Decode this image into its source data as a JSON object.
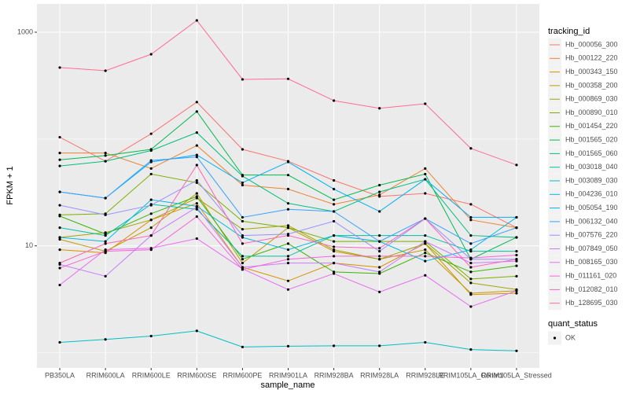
{
  "chart_data": {
    "type": "line",
    "x_label": "sample_name",
    "y_label": "FPKM + 1",
    "categories": [
      "PB350LA",
      "RRIM600LA",
      "RRIM600LE",
      "RRIM600SE",
      "RRIM600PE",
      "RRIM901LA",
      "RRIM928BA",
      "RRIM928LA",
      "RRIM928LE",
      "RRIM105LA_Control",
      "RRIM105LA_Stressed"
    ],
    "log_y": true,
    "ylim": [
      0.72,
      1840
    ],
    "yticks": [
      10,
      1000
    ],
    "minor_yticks": [
      1,
      100
    ],
    "grid": true,
    "legend_title": "tracking_id",
    "point_legend": {
      "title": "quant_status",
      "labels": [
        "OK"
      ]
    },
    "series": [
      {
        "name": "Hb_000056_300",
        "color": "#F8766D",
        "values": [
          104,
          62,
          112,
          222,
          80,
          62,
          41,
          29,
          31,
          24.5,
          14.8
        ]
      },
      {
        "name": "Hb_000122_220",
        "color": "#EA8331",
        "values": [
          74,
          74,
          53,
          87,
          37,
          34,
          24.5,
          30,
          53,
          17.5,
          14.8
        ]
      },
      {
        "name": "Hb_000343_150",
        "color": "#D89000",
        "values": [
          9.2,
          8.6,
          17.5,
          25,
          6.3,
          4.7,
          6.9,
          6.3,
          10.5,
          3.5,
          3.6
        ]
      },
      {
        "name": "Hb_000358_200",
        "color": "#C09B00",
        "values": [
          11.5,
          8.9,
          14.8,
          31,
          6.9,
          14.8,
          8.9,
          7.5,
          9.2,
          3.6,
          3.8
        ]
      },
      {
        "name": "Hb_000869_030",
        "color": "#A3A500",
        "values": [
          12,
          13.3,
          17.5,
          28,
          14.3,
          15.5,
          9.2,
          7.5,
          10.5,
          4.5,
          3.9
        ]
      },
      {
        "name": "Hb_000890_010",
        "color": "#7CAE00",
        "values": [
          19.5,
          20,
          47,
          39,
          17,
          14.8,
          11,
          11,
          11,
          4.9,
          5.2
        ]
      },
      {
        "name": "Hb_001454_220",
        "color": "#39B600",
        "values": [
          19,
          12.9,
          20,
          29,
          7.5,
          10.5,
          5.7,
          5.5,
          8.6,
          5.7,
          6.5
        ]
      },
      {
        "name": "Hb_001565_020",
        "color": "#00BB4E",
        "values": [
          64,
          70,
          80,
          181,
          46,
          46,
          27,
          37,
          47,
          7.5,
          12
        ]
      },
      {
        "name": "Hb_001565_060",
        "color": "#00BF7D",
        "values": [
          56,
          62,
          78,
          115,
          45,
          25,
          21,
          32,
          42,
          12.5,
          12
        ]
      },
      {
        "name": "Hb_003018_040",
        "color": "#00C1A3",
        "values": [
          14.8,
          12.5,
          24.5,
          22,
          8,
          8,
          12.5,
          12.5,
          12.5,
          8.9,
          8.9
        ]
      },
      {
        "name": "Hb_003089_030",
        "color": "#00BFC4",
        "values": [
          1.25,
          1.33,
          1.43,
          1.6,
          1.13,
          1.15,
          1.16,
          1.16,
          1.25,
          1.07,
          1.04
        ]
      },
      {
        "name": "Hb_004236_010",
        "color": "#00BAE0",
        "values": [
          12,
          11,
          27,
          23.5,
          12,
          9.2,
          12.5,
          11,
          7.2,
          9.2,
          18.5
        ]
      },
      {
        "name": "Hb_005054_190",
        "color": "#00B0F6",
        "values": [
          32,
          28,
          61,
          71,
          39,
          61,
          34,
          21,
          42,
          18.5,
          18.5
        ]
      },
      {
        "name": "Hb_006132_040",
        "color": "#35A2FF",
        "values": [
          32,
          28,
          63,
          68,
          18.5,
          22,
          21,
          11,
          18,
          10.5,
          14.8
        ]
      },
      {
        "name": "Hb_007576_220",
        "color": "#9590FF",
        "values": [
          24,
          19.5,
          24,
          41,
          12.5,
          12.9,
          17,
          8.9,
          18,
          7.5,
          7.5
        ]
      },
      {
        "name": "Hb_007849_050",
        "color": "#C77CFF",
        "values": [
          6.7,
          5.2,
          12.5,
          23,
          6.3,
          6.9,
          6.9,
          5.7,
          11,
          6.9,
          7.2
        ]
      },
      {
        "name": "Hb_008165_030",
        "color": "#E76BF3",
        "values": [
          4.3,
          9.2,
          9.5,
          11.7,
          6.1,
          3.9,
          5.5,
          3.7,
          5.3,
          2.7,
          3.8
        ]
      },
      {
        "name": "Hb_011161_020",
        "color": "#FA62DB",
        "values": [
          6.2,
          8.9,
          9.2,
          18.8,
          6,
          7.5,
          8,
          8,
          8,
          7.7,
          8.2
        ]
      },
      {
        "name": "Hb_012082_010",
        "color": "#FF62BC",
        "values": [
          6.9,
          10.5,
          12.5,
          57,
          10.5,
          12.5,
          9.8,
          9.5,
          18,
          6.3,
          7.5
        ]
      },
      {
        "name": "Hb_128695_030",
        "color": "#FF6C91",
        "values": [
          467,
          436,
          622,
          1290,
          362,
          366,
          229,
          194,
          214,
          81.7,
          57.2
        ]
      }
    ]
  }
}
